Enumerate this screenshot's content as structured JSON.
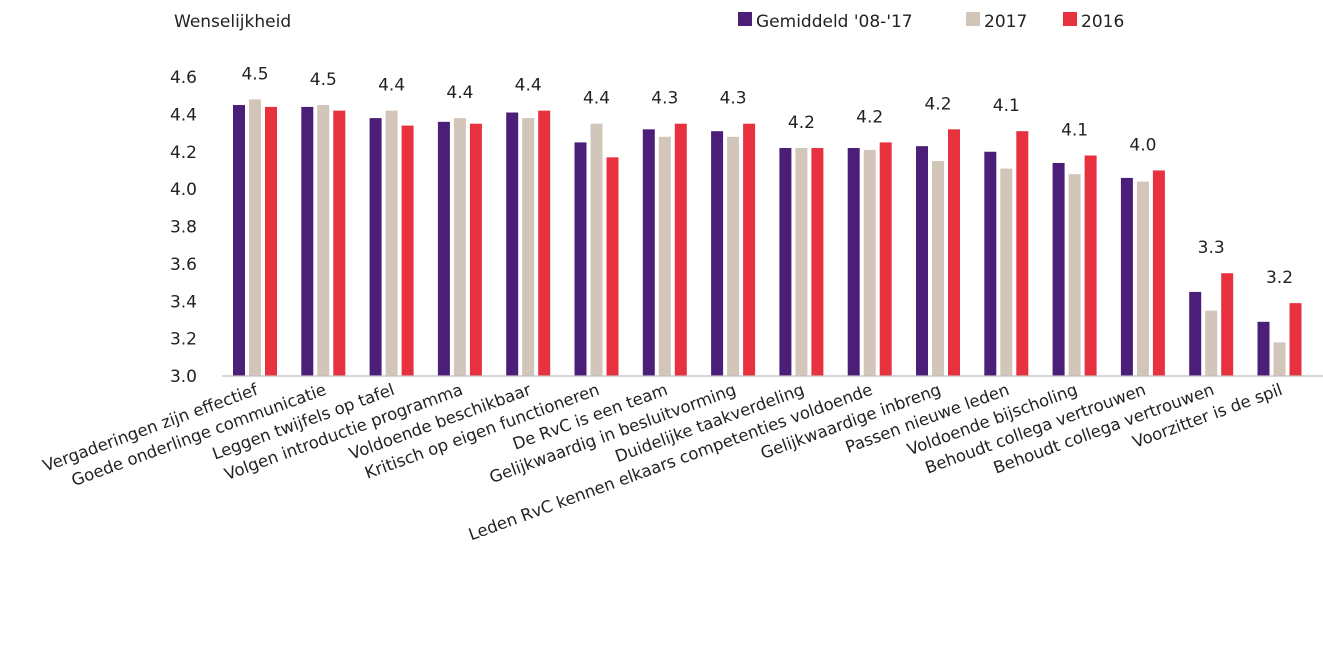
{
  "chart_data": {
    "type": "bar",
    "title": "",
    "ylabel": "Wenselijkheid",
    "xlabel": "",
    "ylim": [
      3.0,
      4.6
    ],
    "yticks": [
      "3.0",
      "3.2",
      "3.4",
      "3.6",
      "3.8",
      "4.0",
      "4.2",
      "4.4",
      "4.6"
    ],
    "legend_position": "top-right",
    "grid": false,
    "categories": [
      "Vergaderingen zijn effectief",
      "Goede onderlinge communicatie",
      "Leggen twijfels op tafel",
      "Volgen  introductie programma",
      "Voldoende beschikbaar",
      "Kritisch op eigen functioneren",
      "De RvC is een team",
      "Gelijkwaardig in besluitvorming",
      "Duidelijke taakverdeling",
      "Leden RvC kennen elkaars competenties voldoende",
      "Gelijkwaardige inbreng",
      "Passen nieuwe leden",
      "Voldoende bijscholing",
      "Behoudt collega vertrouwen",
      "Behoudt collega vertrouwen",
      "Voorzitter is de spil"
    ],
    "series": [
      {
        "name": "Gemiddeld '08-'17",
        "color": "#4b1f78",
        "values": [
          4.45,
          4.44,
          4.38,
          4.36,
          4.41,
          4.25,
          4.32,
          4.31,
          4.22,
          4.22,
          4.23,
          4.2,
          4.14,
          4.06,
          3.45,
          3.29
        ]
      },
      {
        "name": "2017",
        "color": "#d2c5b9",
        "values": [
          4.48,
          4.45,
          4.42,
          4.38,
          4.38,
          4.35,
          4.28,
          4.28,
          4.22,
          4.21,
          4.15,
          4.11,
          4.08,
          4.04,
          3.35,
          3.18
        ]
      },
      {
        "name": "2016",
        "color": "#e8313f",
        "values": [
          4.44,
          4.42,
          4.34,
          4.35,
          4.42,
          4.17,
          4.35,
          4.35,
          4.22,
          4.25,
          4.32,
          4.31,
          4.18,
          4.1,
          3.55,
          3.39
        ]
      }
    ],
    "data_labels": [
      "4.5",
      "4.5",
      "4.4",
      "4.4",
      "4.4",
      "4.4",
      "4.3",
      "4.3",
      "4.2",
      "4.2",
      "4.2",
      "4.1",
      "4.1",
      "4.0",
      "3.3",
      "3.2"
    ]
  }
}
